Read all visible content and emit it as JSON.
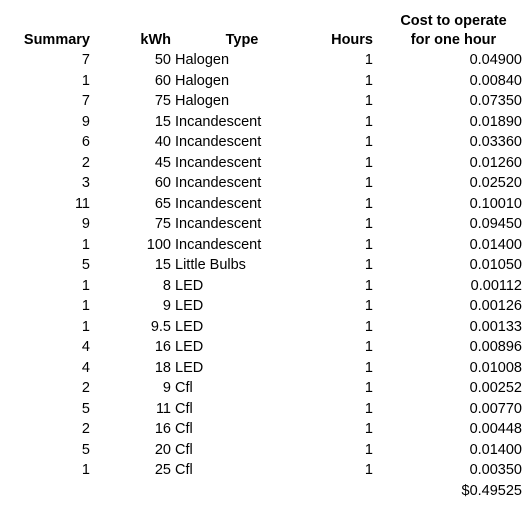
{
  "headers": {
    "summary": "Summary",
    "kwh": "kWh",
    "type": "Type",
    "hours": "Hours",
    "cost_line1": "Cost to operate",
    "cost_line2": "for one hour"
  },
  "rows": [
    {
      "summary": "7",
      "kwh": "50",
      "type": "Halogen",
      "hours": "1",
      "cost": "0.04900"
    },
    {
      "summary": "1",
      "kwh": "60",
      "type": "Halogen",
      "hours": "1",
      "cost": "0.00840"
    },
    {
      "summary": "7",
      "kwh": "75",
      "type": "Halogen",
      "hours": "1",
      "cost": "0.07350"
    },
    {
      "summary": "9",
      "kwh": "15",
      "type": "Incandescent",
      "hours": "1",
      "cost": "0.01890"
    },
    {
      "summary": "6",
      "kwh": "40",
      "type": "Incandescent",
      "hours": "1",
      "cost": "0.03360"
    },
    {
      "summary": "2",
      "kwh": "45",
      "type": "Incandescent",
      "hours": "1",
      "cost": "0.01260"
    },
    {
      "summary": "3",
      "kwh": "60",
      "type": "Incandescent",
      "hours": "1",
      "cost": "0.02520"
    },
    {
      "summary": "11",
      "kwh": "65",
      "type": "Incandescent",
      "hours": "1",
      "cost": "0.10010"
    },
    {
      "summary": "9",
      "kwh": "75",
      "type": "Incandescent",
      "hours": "1",
      "cost": "0.09450"
    },
    {
      "summary": "1",
      "kwh": "100",
      "type": "Incandescent",
      "hours": "1",
      "cost": "0.01400"
    },
    {
      "summary": "5",
      "kwh": "15",
      "type": "Little Bulbs",
      "hours": "1",
      "cost": "0.01050"
    },
    {
      "summary": "1",
      "kwh": "8",
      "type": "LED",
      "hours": "1",
      "cost": "0.00112"
    },
    {
      "summary": "1",
      "kwh": "9",
      "type": "LED",
      "hours": "1",
      "cost": "0.00126"
    },
    {
      "summary": "1",
      "kwh": "9.5",
      "type": "LED",
      "hours": "1",
      "cost": "0.00133"
    },
    {
      "summary": "4",
      "kwh": "16",
      "type": "LED",
      "hours": "1",
      "cost": "0.00896"
    },
    {
      "summary": "4",
      "kwh": "18",
      "type": "LED",
      "hours": "1",
      "cost": "0.01008"
    },
    {
      "summary": "2",
      "kwh": "9",
      "type": "Cfl",
      "hours": "1",
      "cost": "0.00252"
    },
    {
      "summary": "5",
      "kwh": "11",
      "type": "Cfl",
      "hours": "1",
      "cost": "0.00770"
    },
    {
      "summary": "2",
      "kwh": "16",
      "type": "Cfl",
      "hours": "1",
      "cost": "0.00448"
    },
    {
      "summary": "5",
      "kwh": "20",
      "type": "Cfl",
      "hours": "1",
      "cost": "0.01400"
    },
    {
      "summary": "1",
      "kwh": "25",
      "type": "Cfl",
      "hours": "1",
      "cost": "0.00350"
    }
  ],
  "total": "$0.49525"
}
